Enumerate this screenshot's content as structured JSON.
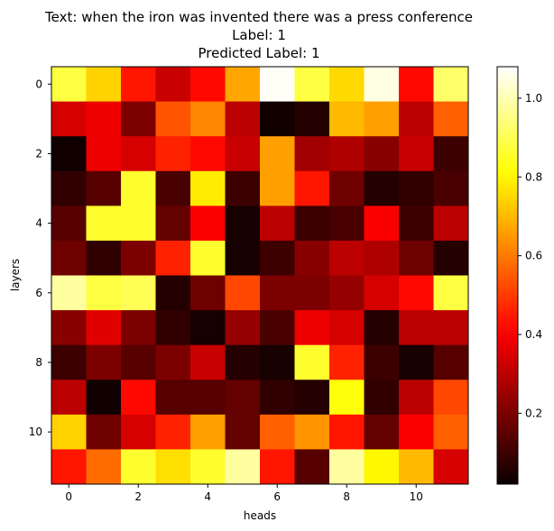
{
  "chart_data": {
    "type": "heatmap",
    "title_lines": [
      "Text: when the iron was invented there was a press conference",
      "Label: 1",
      "Predicted Label: 1"
    ],
    "xlabel": "heads",
    "ylabel": "layers",
    "x_ticks": [
      0,
      2,
      4,
      6,
      8,
      10
    ],
    "y_ticks": [
      0,
      2,
      4,
      6,
      8,
      10
    ],
    "colormap": "hot",
    "colorbar": {
      "range": [
        0.02,
        1.08
      ],
      "ticks": [
        0.2,
        0.4,
        0.6,
        0.8,
        1.0
      ],
      "tick_labels": [
        "0.2",
        "0.4",
        "0.6",
        "0.8",
        "1.0"
      ]
    },
    "values": [
      [
        0.88,
        0.74,
        0.44,
        0.32,
        0.42,
        0.67,
        1.07,
        0.88,
        0.75,
        1.05,
        0.42,
        0.92
      ],
      [
        0.34,
        0.38,
        0.2,
        0.54,
        0.62,
        0.3,
        0.03,
        0.06,
        0.7,
        0.66,
        0.3,
        0.56
      ],
      [
        0.03,
        0.38,
        0.34,
        0.46,
        0.42,
        0.32,
        0.66,
        0.26,
        0.28,
        0.22,
        0.32,
        0.1
      ],
      [
        0.08,
        0.14,
        0.86,
        0.12,
        0.78,
        0.1,
        0.66,
        0.44,
        0.18,
        0.06,
        0.08,
        0.12
      ],
      [
        0.14,
        0.86,
        0.86,
        0.16,
        0.4,
        0.04,
        0.3,
        0.1,
        0.12,
        0.4,
        0.1,
        0.3
      ],
      [
        0.18,
        0.08,
        0.2,
        0.46,
        0.86,
        0.04,
        0.1,
        0.22,
        0.3,
        0.28,
        0.18,
        0.06
      ],
      [
        0.98,
        0.88,
        0.9,
        0.06,
        0.18,
        0.52,
        0.2,
        0.2,
        0.24,
        0.34,
        0.42,
        0.88
      ],
      [
        0.22,
        0.36,
        0.2,
        0.08,
        0.04,
        0.24,
        0.12,
        0.38,
        0.34,
        0.06,
        0.3,
        0.3
      ],
      [
        0.1,
        0.2,
        0.14,
        0.2,
        0.32,
        0.06,
        0.04,
        0.86,
        0.46,
        0.1,
        0.04,
        0.14
      ],
      [
        0.3,
        0.03,
        0.42,
        0.14,
        0.14,
        0.16,
        0.08,
        0.06,
        0.82,
        0.08,
        0.3,
        0.52
      ],
      [
        0.74,
        0.18,
        0.34,
        0.46,
        0.66,
        0.16,
        0.56,
        0.64,
        0.44,
        0.16,
        0.4,
        0.56
      ],
      [
        0.44,
        0.58,
        0.86,
        0.76,
        0.86,
        0.98,
        0.44,
        0.14,
        0.98,
        0.8,
        0.7,
        0.34
      ]
    ]
  }
}
